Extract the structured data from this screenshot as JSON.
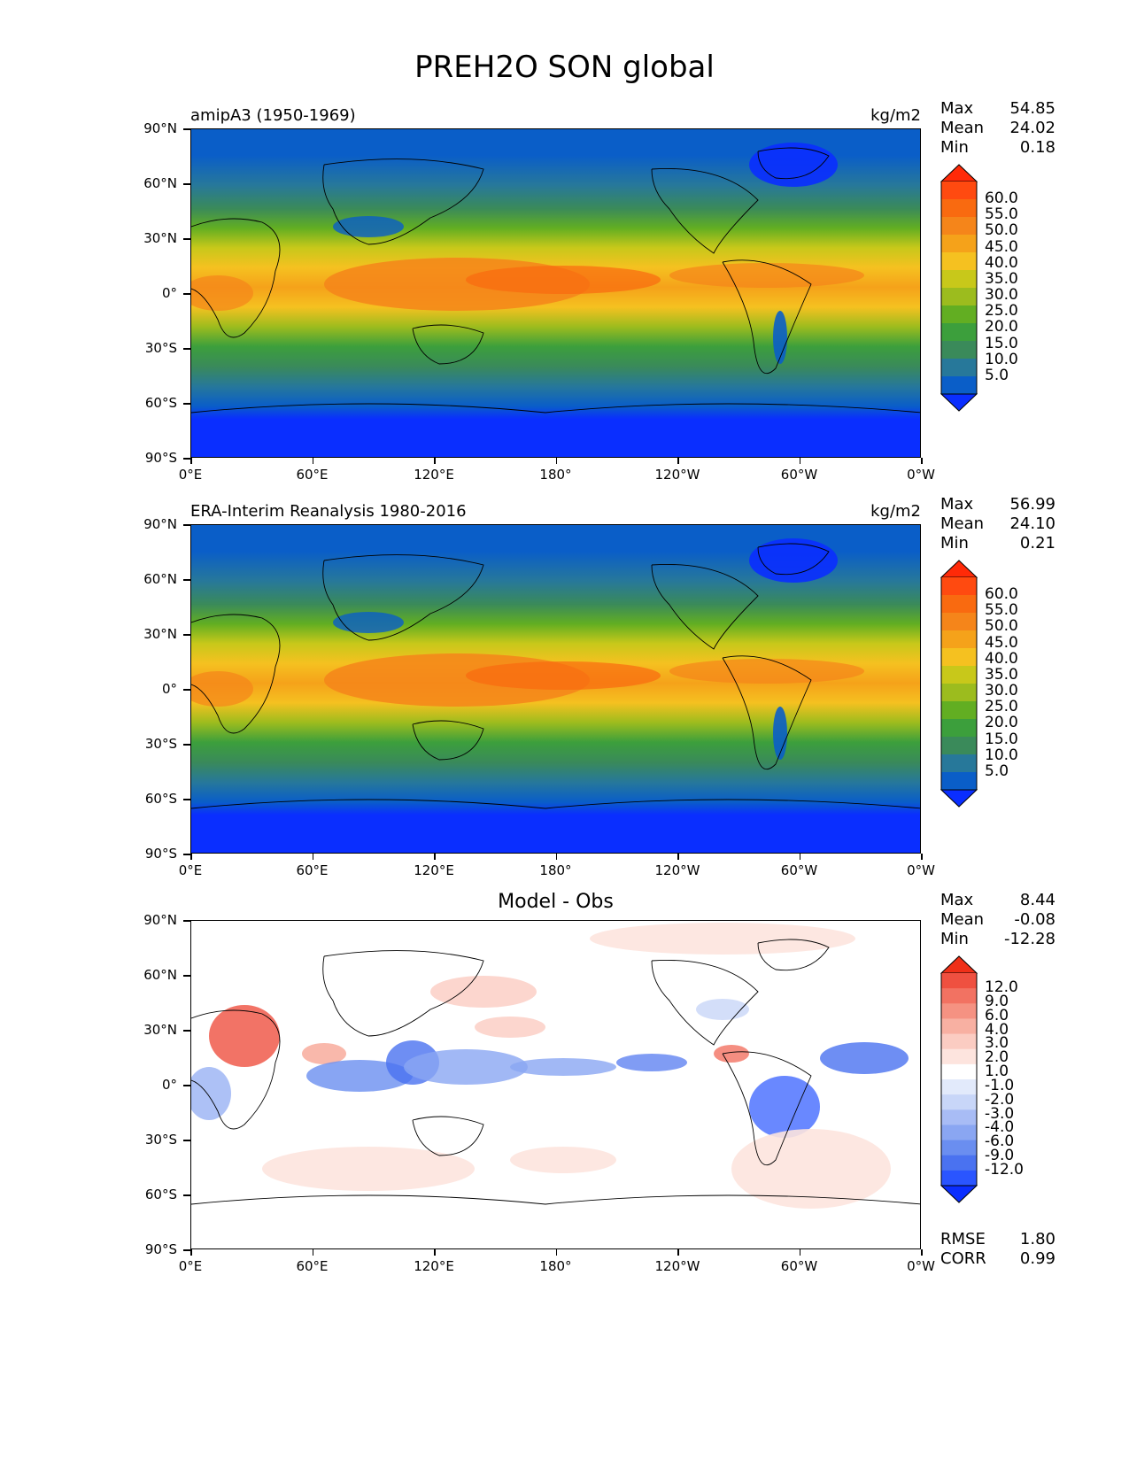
{
  "figure_title": "PREH2O SON global",
  "lat_labels": [
    "90°N",
    "60°N",
    "30°N",
    "0°",
    "30°S",
    "60°S",
    "90°S"
  ],
  "lon_labels": [
    "0°E",
    "60°E",
    "120°E",
    "180°",
    "120°W",
    "60°W",
    "0°W"
  ],
  "panels": [
    {
      "title": "amipA3 (1950-1969)",
      "units": "kg/m2",
      "stats": [
        {
          "label": "Max",
          "value": "54.85"
        },
        {
          "label": "Mean",
          "value": "24.02"
        },
        {
          "label": "Min",
          "value": "0.18"
        }
      ],
      "colorbar_labels": [
        "60.0",
        "55.0",
        "50.0",
        "45.0",
        "40.0",
        "35.0",
        "30.0",
        "25.0",
        "20.0",
        "15.0",
        "10.0",
        "5.0"
      ]
    },
    {
      "title": "ERA-Interim Reanalysis 1980-2016",
      "units": "kg/m2",
      "stats": [
        {
          "label": "Max",
          "value": "56.99"
        },
        {
          "label": "Mean",
          "value": "24.10"
        },
        {
          "label": "Min",
          "value": "0.21"
        }
      ],
      "colorbar_labels": [
        "60.0",
        "55.0",
        "50.0",
        "45.0",
        "40.0",
        "35.0",
        "30.0",
        "25.0",
        "20.0",
        "15.0",
        "10.0",
        "5.0"
      ]
    },
    {
      "title": "Model - Obs",
      "units": "",
      "stats": [
        {
          "label": "Max",
          "value": "8.44"
        },
        {
          "label": "Mean",
          "value": "-0.08"
        },
        {
          "label": "Min",
          "value": "-12.28"
        }
      ],
      "colorbar_labels": [
        "12.0",
        "9.0",
        "6.0",
        "4.0",
        "3.0",
        "2.0",
        "1.0",
        "-1.0",
        "-2.0",
        "-3.0",
        "-4.0",
        "-6.0",
        "-9.0",
        "-12.0"
      ],
      "footer": [
        {
          "label": "RMSE",
          "value": "1.80"
        },
        {
          "label": "CORR",
          "value": "0.99"
        }
      ]
    }
  ],
  "colors": {
    "abs_scale": [
      "#0a2eff",
      "#0a5ec8",
      "#27789a",
      "#3a8a5a",
      "#3c9f3c",
      "#62ae22",
      "#9cbc1e",
      "#c8c81a",
      "#f5c120",
      "#f5a21a",
      "#f5851a",
      "#f96a10",
      "#ff4a10",
      "#ff2a08"
    ],
    "diff_scale": [
      "#0a2eff",
      "#2a55ff",
      "#4a72f0",
      "#6a8ef0",
      "#8aa6f2",
      "#a8bcf5",
      "#c8d6f8",
      "#e2eafb",
      "#ffffff",
      "#fde4de",
      "#fbccc2",
      "#f8b0a2",
      "#f59282",
      "#f27262",
      "#ef5040",
      "#f03018"
    ]
  }
}
